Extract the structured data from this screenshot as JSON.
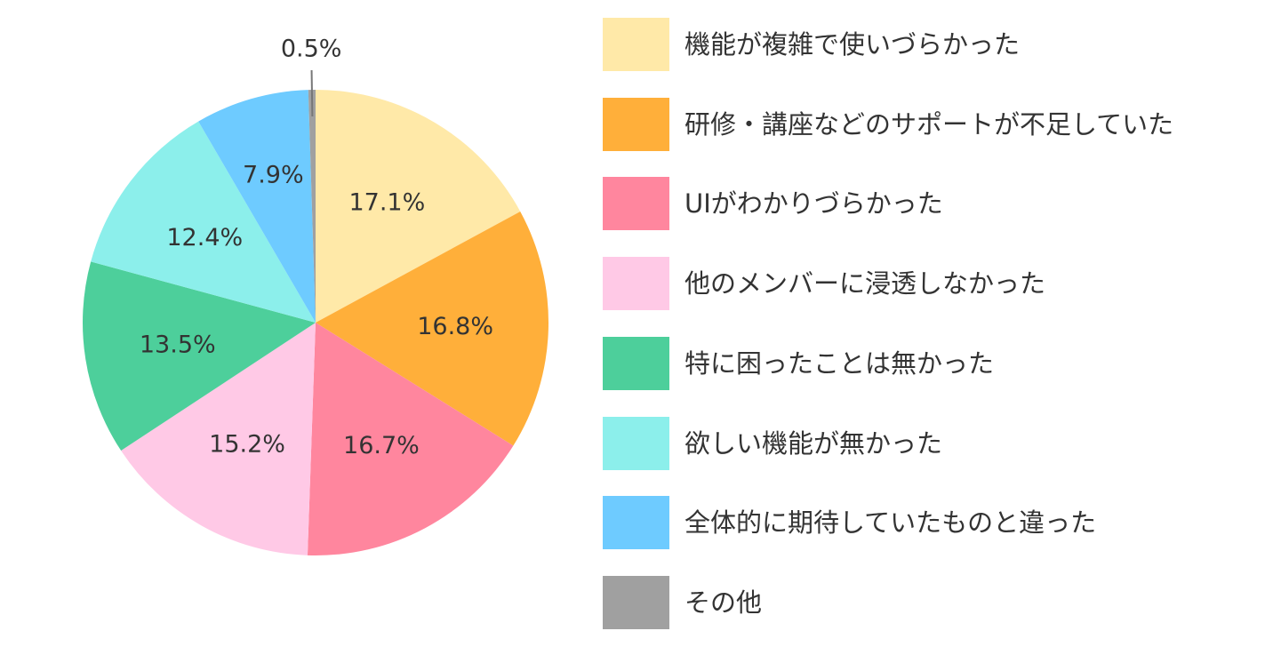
{
  "chart_data": {
    "type": "pie",
    "start_angle_deg": 0,
    "direction": "clockwise",
    "slices": [
      {
        "label": "機能が複雑で使いづらかった",
        "value": 17.1,
        "display": "17.1%",
        "color": "#FFE9A8"
      },
      {
        "label": "研修・講座などのサポートが不足していた",
        "value": 16.8,
        "display": "16.8%",
        "color": "#FFAF3A"
      },
      {
        "label": "UIがわかりづらかった",
        "value": 16.7,
        "display": "16.7%",
        "color": "#FF869E"
      },
      {
        "label": "他のメンバーに浸透しなかった",
        "value": 15.2,
        "display": "15.2%",
        "color": "#FFC9E6"
      },
      {
        "label": "特に困ったことは無かった",
        "value": 13.5,
        "display": "13.5%",
        "color": "#4DCF9B"
      },
      {
        "label": "欲しい機能が無かった",
        "value": 12.4,
        "display": "12.4%",
        "color": "#8CEFEB"
      },
      {
        "label": "全体的に期待していたものと違った",
        "value": 7.9,
        "display": "7.9%",
        "color": "#6ECBFF"
      },
      {
        "label": "その他",
        "value": 0.5,
        "display": "0.5%",
        "color": "#A0A0A0"
      }
    ],
    "legend_position": "right"
  }
}
